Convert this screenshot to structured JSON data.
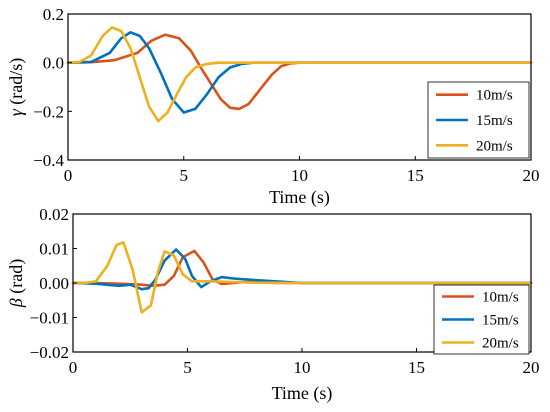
{
  "chart_data": [
    {
      "type": "line",
      "xlabel": "Time (s)",
      "ylabel_symbol": "γ",
      "ylabel_unit": "(rad/s)",
      "xlim": [
        0,
        20
      ],
      "ylim": [
        -0.4,
        0.2
      ],
      "xticks": [
        0,
        5,
        10,
        15,
        20
      ],
      "xtick_labels": [
        "0",
        "5",
        "10",
        "15",
        "20"
      ],
      "yticks": [
        -0.4,
        -0.2,
        0.0,
        0.2
      ],
      "ytick_labels": [
        "−0.4",
        "−0.2",
        "0.0",
        "0.2"
      ],
      "grid": false,
      "legend_position": "bottom-right",
      "series": [
        {
          "name": "10m/s",
          "color": "#D95319",
          "x": [
            0,
            1,
            2,
            3,
            3.6,
            4.2,
            4.8,
            5.3,
            5.8,
            6.2,
            6.6,
            7,
            7.4,
            7.8,
            8.3,
            8.8,
            9.2,
            9.6,
            10,
            13.5,
            20
          ],
          "y": [
            0,
            0.002,
            0.01,
            0.04,
            0.09,
            0.115,
            0.1,
            0.05,
            -0.03,
            -0.09,
            -0.15,
            -0.185,
            -0.19,
            -0.17,
            -0.11,
            -0.05,
            -0.015,
            -0.003,
            0,
            0,
            0
          ]
        },
        {
          "name": "15m/s",
          "color": "#0072BD",
          "x": [
            0,
            1,
            1.8,
            2.3,
            2.7,
            3.1,
            3.5,
            4,
            4.5,
            5,
            5.5,
            6,
            6.5,
            7,
            7.5,
            8,
            9,
            10,
            13.5,
            20
          ],
          "y": [
            0,
            0.003,
            0.04,
            0.1,
            0.125,
            0.11,
            0.06,
            -0.04,
            -0.15,
            -0.205,
            -0.19,
            -0.13,
            -0.06,
            -0.02,
            -0.005,
            0,
            0,
            0,
            0,
            0
          ]
        },
        {
          "name": "20m/s",
          "color": "#EDB120",
          "x": [
            0,
            0.5,
            1,
            1.5,
            1.9,
            2.3,
            2.7,
            3.1,
            3.5,
            3.9,
            4.3,
            4.7,
            5.1,
            5.5,
            6,
            6.5,
            7,
            8,
            10,
            13.5,
            20
          ],
          "y": [
            0,
            0.003,
            0.03,
            0.11,
            0.145,
            0.13,
            0.06,
            -0.06,
            -0.18,
            -0.24,
            -0.205,
            -0.13,
            -0.06,
            -0.02,
            -0.005,
            0,
            0,
            0,
            0,
            0,
            0
          ]
        }
      ]
    },
    {
      "type": "line",
      "xlabel": "Time (s)",
      "ylabel_symbol": "β",
      "ylabel_unit": "(rad)",
      "xlim": [
        0,
        20
      ],
      "ylim": [
        -0.02,
        0.02
      ],
      "xticks": [
        0,
        5,
        10,
        15,
        20
      ],
      "xtick_labels": [
        "0",
        "5",
        "10",
        "15",
        "20"
      ],
      "yticks": [
        -0.02,
        -0.01,
        0.0,
        0.01,
        0.02
      ],
      "ytick_labels": [
        "−0.02",
        "−0.01",
        "0.00",
        "0.01",
        "0.02"
      ],
      "grid": false,
      "legend_position": "bottom-right",
      "series": [
        {
          "name": "10m/s",
          "color": "#D95319",
          "x": [
            0,
            1,
            2,
            3,
            3.5,
            4,
            4.4,
            4.8,
            5.3,
            5.7,
            6.1,
            6.5,
            7,
            7.5,
            8,
            9,
            10,
            13.5,
            20
          ],
          "y": [
            0,
            0,
            -0.0002,
            -0.0005,
            -0.0008,
            -0.0005,
            0.002,
            0.0075,
            0.0093,
            0.006,
            0.001,
            -0.0003,
            0,
            0.0003,
            0.0002,
            0,
            0,
            0,
            0
          ]
        },
        {
          "name": "15m/s",
          "color": "#0072BD",
          "x": [
            0,
            1,
            2,
            2.5,
            3,
            3.3,
            3.6,
            4,
            4.5,
            4.9,
            5.2,
            5.6,
            6,
            6.5,
            7,
            8,
            9,
            10,
            13.5,
            20
          ],
          "y": [
            0,
            -0.0002,
            -0.0008,
            -0.0005,
            -0.0018,
            -0.0015,
            0.001,
            0.0065,
            0.0097,
            0.007,
            0.002,
            -0.0012,
            0.0005,
            0.0017,
            0.0013,
            0.0008,
            0.0004,
            0,
            0,
            0
          ]
        },
        {
          "name": "20m/s",
          "color": "#EDB120",
          "x": [
            0,
            0.5,
            1,
            1.5,
            1.9,
            2.2,
            2.6,
            3,
            3.4,
            3.7,
            4,
            4.4,
            4.8,
            5.2,
            5.6,
            6,
            7,
            8,
            10,
            13.5,
            20
          ],
          "y": [
            0,
            0,
            0.0005,
            0.005,
            0.011,
            0.0118,
            0.004,
            -0.0085,
            -0.0065,
            0.003,
            0.0092,
            0.008,
            0.0025,
            0.0005,
            0.0005,
            0.0005,
            0.0003,
            0.0001,
            0,
            0,
            0
          ]
        }
      ]
    }
  ]
}
